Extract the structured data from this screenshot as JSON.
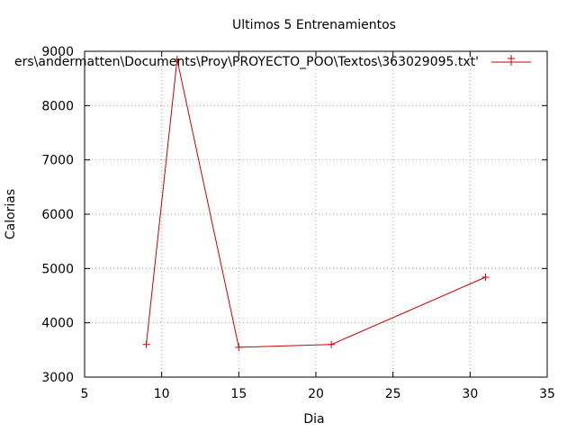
{
  "chart_data": {
    "type": "line",
    "title": "Ultimos 5 Entrenamientos",
    "xlabel": "Dia",
    "ylabel": "Calorias",
    "xlim": [
      5,
      35
    ],
    "ylim": [
      3000,
      9000
    ],
    "xticks": [
      5,
      10,
      15,
      20,
      25,
      30,
      35
    ],
    "yticks": [
      3000,
      4000,
      5000,
      6000,
      7000,
      8000,
      9000
    ],
    "grid": true,
    "legend_position": "top-right",
    "series": [
      {
        "name": "ers\\andermatten\\Documents\\Proy\\PROYECTO_POO\\Textos\\363029095.txt'",
        "color": "#cc0000",
        "x": [
          9,
          11,
          15,
          21,
          31
        ],
        "y": [
          3600,
          8850,
          3550,
          3600,
          4840
        ]
      }
    ]
  }
}
